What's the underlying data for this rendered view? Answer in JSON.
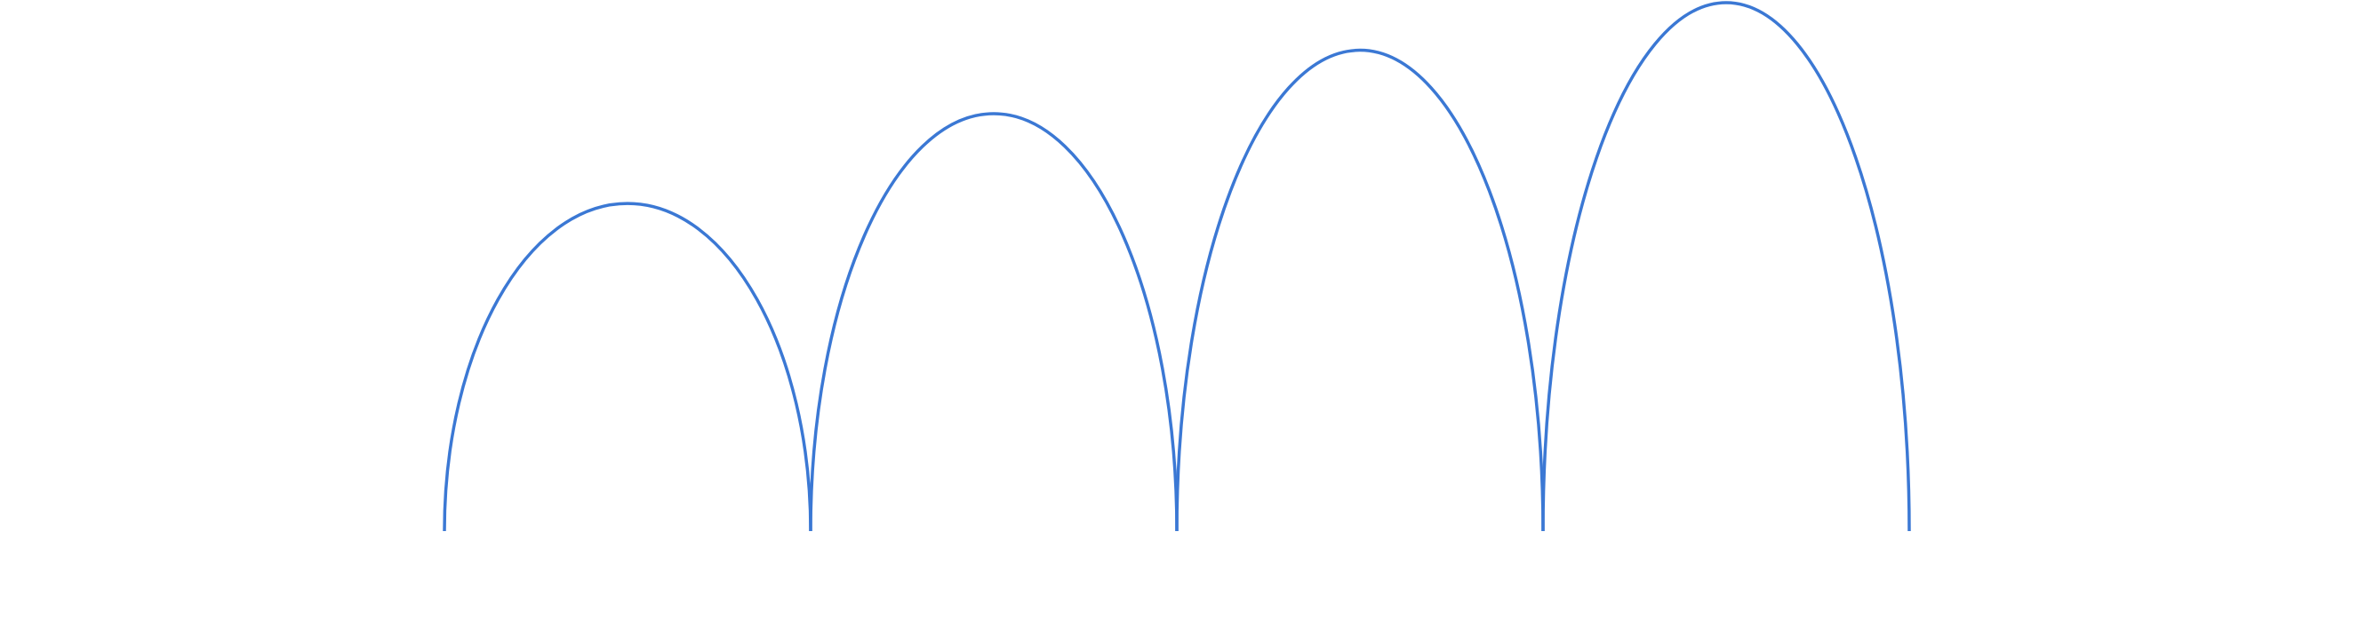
{
  "diagram": {
    "type": "arc-sequence",
    "arc_count": 4,
    "relative_heights": [
      0.62,
      0.79,
      0.91,
      1.0
    ],
    "stroke_color": "#3b78d4",
    "background_color": "#ffffff"
  }
}
